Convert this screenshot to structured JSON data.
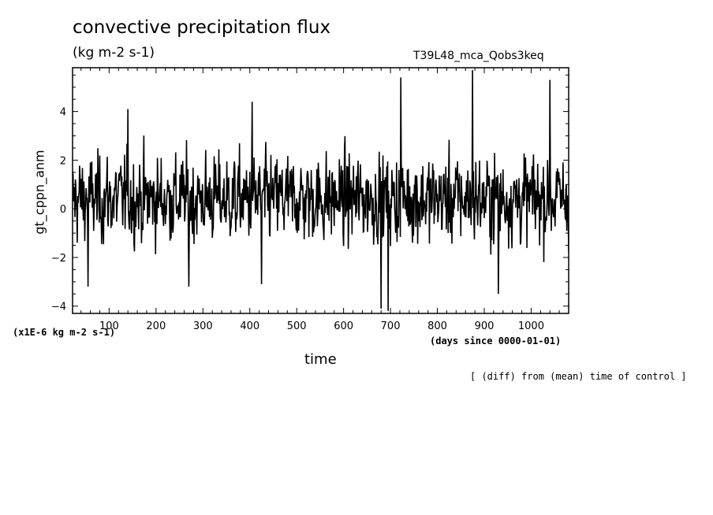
{
  "chart_data": {
    "type": "line",
    "title": "convective precipitation flux",
    "units": "(kg m-2 s-1)",
    "run_label": "T39L48_mca_Qobs3keq",
    "ylabel": "gt_cppn_anm",
    "xlabel": "time",
    "scale_note": "(x1E-6 kg m-2 s-1)",
    "x_units": "(days since 0000-01-01)",
    "footnote": "[ (diff) from (mean) time of control ]",
    "xlim": [
      22,
      1080
    ],
    "ylim": [
      -4.3,
      5.8
    ],
    "x_ticks": [
      100,
      200,
      300,
      400,
      500,
      600,
      700,
      800,
      900,
      1000
    ],
    "y_ticks": [
      -4,
      -2,
      0,
      2,
      4
    ],
    "series": [
      {
        "x_start": 22,
        "x_step": 1,
        "peaks": [
          {
            "x": 55,
            "y": -3.2
          },
          {
            "x": 140,
            "y": 4.1
          },
          {
            "x": 270,
            "y": -3.2
          },
          {
            "x": 405,
            "y": 4.4
          },
          {
            "x": 425,
            "y": -3.1
          },
          {
            "x": 680,
            "y": -4.1
          },
          {
            "x": 695,
            "y": -4.2
          },
          {
            "x": 722,
            "y": 5.4
          },
          {
            "x": 875,
            "y": 5.7
          },
          {
            "x": 930,
            "y": -3.5
          },
          {
            "x": 1040,
            "y": 5.3
          }
        ]
      }
    ]
  },
  "labels": {
    "title": "convective precipitation flux",
    "units": "(kg m-2 s-1)",
    "run_label": "T39L48_mca_Qobs3keq",
    "ylabel": "gt_cppn_anm",
    "xlabel": "time",
    "scale_note": "(x1E-6 kg m-2 s-1)",
    "x_units": "(days since 0000-01-01)",
    "footnote": "[ (diff) from (mean) time of control ]"
  }
}
